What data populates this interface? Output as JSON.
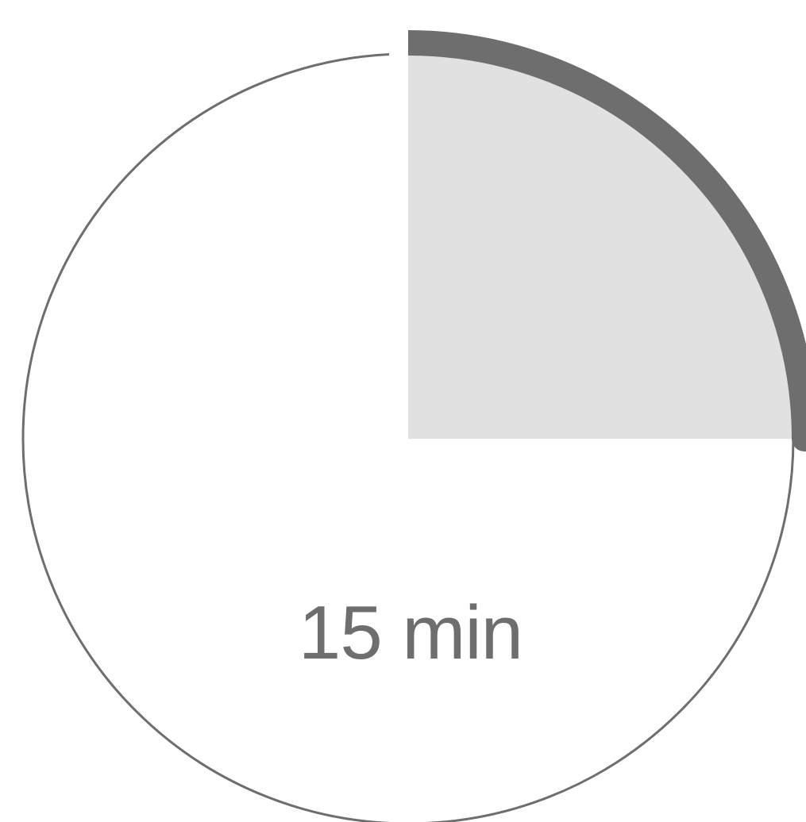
{
  "timer": {
    "label": "15 min",
    "minutes": 15,
    "full_scale_minutes": 60,
    "colors": {
      "elapsed_fill": "#e1e1e1",
      "progress_arc": "#6e6e6e",
      "dial_outline": "#6e6e6e",
      "label": "#6e6e6e",
      "background": "#ffffff"
    }
  }
}
